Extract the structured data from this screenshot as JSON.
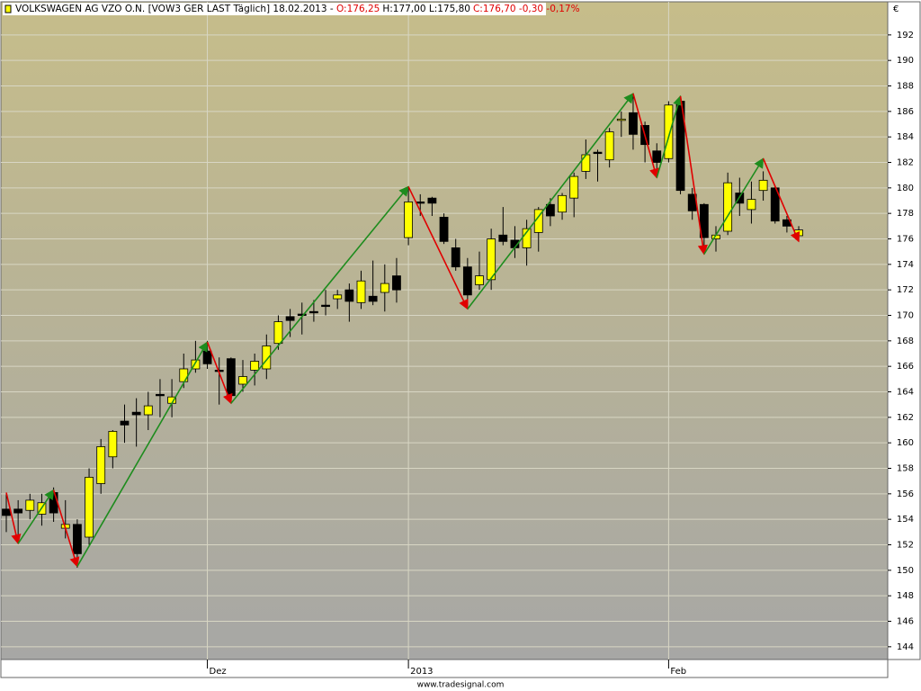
{
  "chart_data": {
    "type": "candlestick",
    "title_parts": [
      {
        "text": "VOLKSWAGEN AG VZO O.N. [VOW3 GER LAST Täglich] 18.02.2013 -",
        "color": "#000000"
      },
      {
        "text": "O:176,25",
        "color": "#e00000"
      },
      {
        "text": "H:177,00 L:175,80",
        "color": "#000000"
      },
      {
        "text": "C:176,70 -0,30 -0,17%",
        "color": "#e00000"
      }
    ],
    "y_axis_label": "€",
    "footer": "www.tradesignal.com",
    "categories": [
      null,
      null,
      null,
      null,
      null,
      null,
      null,
      null,
      null,
      null,
      null,
      null,
      null,
      null,
      null,
      null,
      null,
      "Dez",
      null,
      null,
      null,
      null,
      null,
      null,
      null,
      null,
      null,
      null,
      null,
      null,
      null,
      null,
      null,
      null,
      "2013",
      null,
      null,
      null,
      null,
      null,
      null,
      null,
      null,
      null,
      null,
      null,
      null,
      null,
      null,
      null,
      null,
      null,
      null,
      null,
      null,
      null,
      "Feb",
      null,
      null,
      null,
      null,
      null,
      null,
      null,
      null,
      null,
      null,
      null
    ],
    "open": [
      154.8,
      154.8,
      154.7,
      154.4,
      156.1,
      153.3,
      153.6,
      152.6,
      156.8,
      158.9,
      161.7,
      162.4,
      162.2,
      163.8,
      163.1,
      164.8,
      165.8,
      167.2,
      165.7,
      166.6,
      164.6,
      165.7,
      165.8,
      167.8,
      169.9,
      170.1,
      170.3,
      170.8,
      171.3,
      172,
      171,
      171.5,
      171.8,
      173.1,
      176.1,
      178.9,
      179.2,
      177.7,
      175.3,
      173.8,
      172.4,
      172.8,
      176.3,
      175.9,
      175.3,
      176.5,
      178.7,
      178.1,
      179.2,
      181.3,
      182.8,
      182.2,
      185.3,
      185.9,
      184.9,
      182.9,
      182.3,
      186.8,
      179.5,
      178.7,
      176,
      176.6,
      179.6,
      178.3,
      179.8,
      180,
      177.5,
      176.25
    ],
    "high": [
      156,
      155.5,
      156,
      156,
      156.5,
      155.5,
      154,
      158,
      160.3,
      161,
      163,
      163.5,
      164,
      165,
      165,
      167,
      168,
      168,
      166.7,
      166.7,
      166.5,
      167,
      168.5,
      170,
      170.5,
      171,
      171.2,
      172,
      172,
      172.5,
      173.5,
      174.3,
      174,
      174.5,
      180,
      179.5,
      179.3,
      178,
      176,
      174.5,
      175,
      176.8,
      178.5,
      177,
      177.5,
      178.5,
      179.2,
      179.6,
      181.2,
      183.8,
      183,
      184.7,
      186,
      187.4,
      185.2,
      183.5,
      186.8,
      187.2,
      180,
      178.8,
      177,
      181.2,
      180.8,
      180.5,
      181.3,
      180.2,
      177.8,
      177
    ],
    "low": [
      153,
      152.5,
      154,
      153.5,
      153.8,
      152.5,
      150.2,
      152,
      156,
      158,
      160,
      159.7,
      161,
      162,
      162,
      164.3,
      165.5,
      165.8,
      163,
      163.3,
      164,
      164.5,
      165,
      167.3,
      168.3,
      168.5,
      169.5,
      170,
      170.5,
      169.5,
      170.5,
      170.8,
      170.3,
      171,
      175.5,
      177.8,
      177.8,
      175.6,
      173.5,
      170.7,
      172,
      172,
      175.5,
      174.5,
      173.9,
      175,
      177,
      177.5,
      177.7,
      180.7,
      180.5,
      181.6,
      184,
      183,
      182,
      181,
      182,
      179.5,
      177.5,
      175,
      175,
      176.3,
      177.8,
      177.2,
      179,
      177.2,
      176.5,
      175.8
    ],
    "close": [
      154.3,
      154.5,
      155.5,
      155.3,
      154.5,
      153.6,
      151.3,
      157.3,
      159.7,
      160.9,
      161.4,
      162.2,
      162.9,
      163.7,
      163.6,
      165.8,
      166.5,
      166.2,
      165.6,
      163.7,
      165.2,
      166.4,
      167.6,
      169.5,
      169.6,
      170,
      170.2,
      170.7,
      171.6,
      171.1,
      172.7,
      171.1,
      172.5,
      172,
      178.9,
      178.8,
      178.8,
      175.8,
      173.8,
      171.6,
      173.1,
      176,
      175.8,
      175.3,
      176.8,
      178.3,
      177.8,
      179.4,
      180.9,
      182.6,
      182.7,
      184.4,
      185.4,
      184.2,
      183.4,
      182,
      186.5,
      179.8,
      178.2,
      176.1,
      176.3,
      180.4,
      178.8,
      179.1,
      180.6,
      177.4,
      177,
      176.7
    ],
    "up_color": "#ffff00",
    "down_color": "#000000",
    "zigzag": {
      "x": [
        0,
        1,
        4,
        6,
        17,
        19,
        34,
        39,
        53,
        55,
        57,
        59,
        64,
        67
      ],
      "values": [
        156.1,
        152.1,
        156.3,
        150.3,
        167.9,
        163.1,
        180.1,
        170.5,
        187.4,
        180.8,
        187.2,
        174.8,
        182.3,
        175.8
      ],
      "up_color": "#1e8c1e",
      "down_color": "#e00000"
    },
    "ylim": [
      143.0,
      194.6
    ],
    "yticks": [
      144,
      146,
      148,
      150,
      152,
      154,
      156,
      158,
      160,
      162,
      164,
      166,
      168,
      170,
      172,
      174,
      176,
      178,
      180,
      182,
      184,
      186,
      188,
      190,
      192
    ],
    "grid": true
  }
}
